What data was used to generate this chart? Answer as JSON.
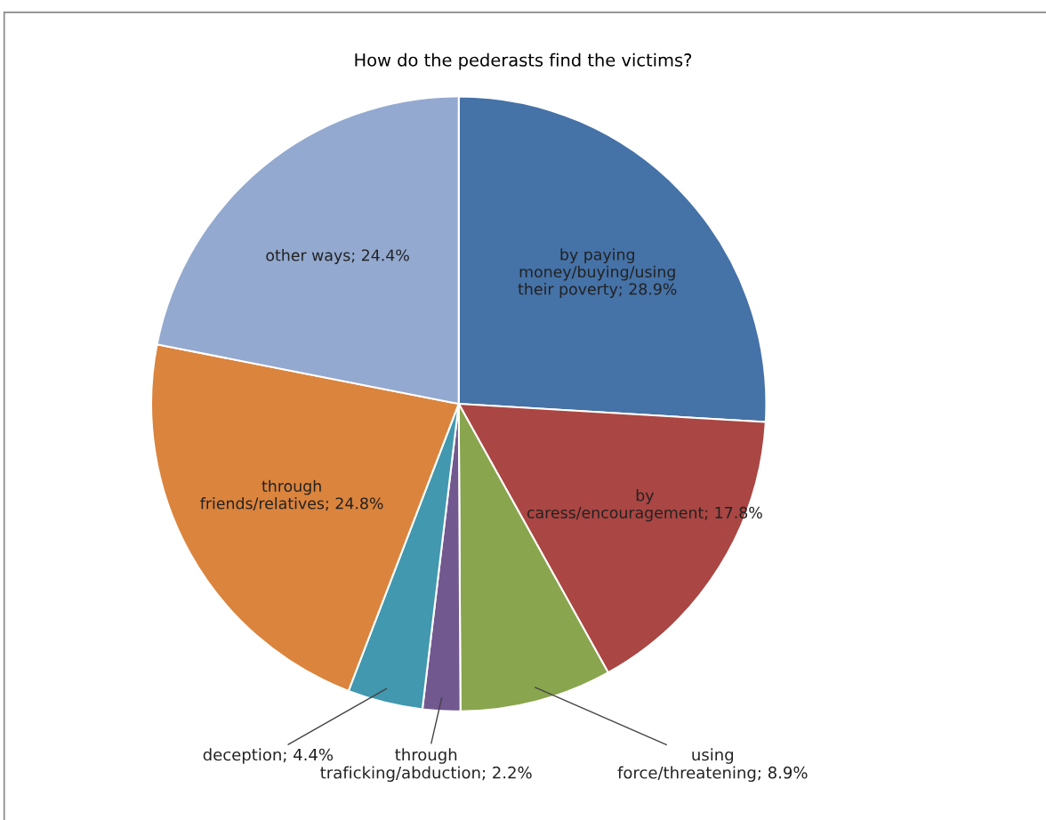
{
  "chart_data": {
    "type": "pie",
    "title": "How do the pederasts find the victims?",
    "categories": [
      "by paying\nmoney/buying/using\ntheir poverty",
      "by\ncaress/encouragement",
      "using\nforce/threatening",
      "through\ntraficking/abduction",
      "deception",
      "through\nfriends/relatives",
      "other ways"
    ],
    "values": [
      28.9,
      17.8,
      8.9,
      2.2,
      4.4,
      24.8,
      24.4
    ],
    "value_labels": [
      "28.9%",
      "17.8%",
      "8.9%",
      "2.2%",
      "4.4%",
      "24.8%",
      "24.4%"
    ],
    "colors": [
      "#4572a7",
      "#aa4643",
      "#89a54e",
      "#71588f",
      "#4198af",
      "#db843d",
      "#93a9cf"
    ],
    "legend": false
  }
}
